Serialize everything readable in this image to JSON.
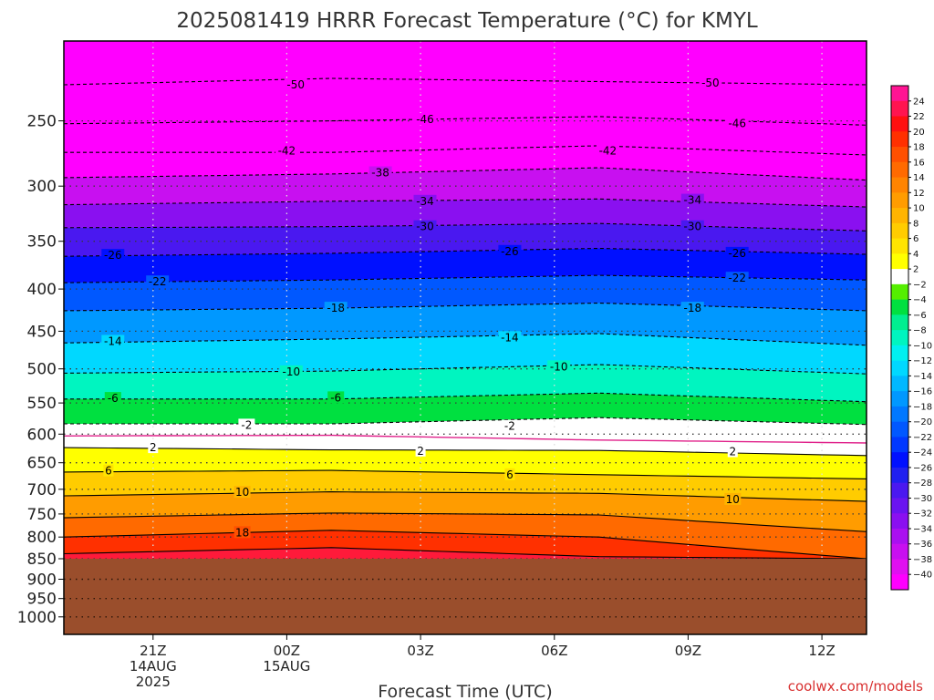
{
  "chart_data": {
    "type": "heatmap",
    "title": "2025081419 HRRR Forecast Temperature (°C) for KMYL",
    "xlabel": "Forecast Time (UTC)",
    "ylabel": "",
    "credit": "coolwx.com/models",
    "x_ticks": [
      {
        "label": "21Z",
        "sub": [
          "14AUG",
          "2025"
        ],
        "hours": 2
      },
      {
        "label": "00Z",
        "sub": [
          "15AUG"
        ],
        "hours": 5
      },
      {
        "label": "03Z",
        "sub": [],
        "hours": 8
      },
      {
        "label": "06Z",
        "sub": [],
        "hours": 11
      },
      {
        "label": "09Z",
        "sub": [],
        "hours": 14
      },
      {
        "label": "12Z",
        "sub": [],
        "hours": 17
      }
    ],
    "xlim_hours": [
      0,
      18
    ],
    "y_scale": "log",
    "y_ticks": [
      250,
      300,
      350,
      400,
      450,
      500,
      550,
      600,
      650,
      700,
      750,
      800,
      850,
      900,
      950,
      1000
    ],
    "ylim_hpa": [
      200,
      1050
    ],
    "surface_pressure_hpa": 850,
    "grid": true,
    "colorbar": {
      "levels": [
        24,
        22,
        20,
        18,
        16,
        14,
        12,
        10,
        8,
        6,
        4,
        2,
        -2,
        -4,
        -6,
        -8,
        -10,
        -12,
        -14,
        -16,
        -18,
        -20,
        -22,
        -24,
        -26,
        -28,
        -30,
        -32,
        -34,
        -36,
        -38,
        -40
      ],
      "colors": [
        "#ff1493",
        "#ff1450",
        "#ff1010",
        "#ff3000",
        "#ff5000",
        "#ff6a00",
        "#ff8400",
        "#ff9c00",
        "#ffb400",
        "#ffcc00",
        "#ffe400",
        "#ffff00",
        "#ffffff",
        "#55ee00",
        "#00e040",
        "#00ee90",
        "#00f5c0",
        "#00f0f0",
        "#00d8ff",
        "#00b8ff",
        "#0098ff",
        "#0078ff",
        "#0058ff",
        "#0038ff",
        "#0010ff",
        "#2020f0",
        "#4a18f0",
        "#6a14f0",
        "#8a10f0",
        "#aa10f0",
        "#c810f0",
        "#e010f0",
        "#ff00ff"
      ]
    },
    "contours": [
      {
        "value": -50,
        "pressures": [
          226,
          222,
          224,
          226
        ]
      },
      {
        "value": -46,
        "pressures": [
          252,
          250,
          247,
          253
        ]
      },
      {
        "value": -42,
        "pressures": [
          273,
          273,
          268,
          275
        ]
      },
      {
        "value": -38,
        "pressures": [
          293,
          290,
          285,
          295
        ]
      },
      {
        "value": -34,
        "pressures": [
          316,
          313,
          311,
          318
        ]
      },
      {
        "value": -30,
        "pressures": [
          337,
          336,
          333,
          340
        ]
      },
      {
        "value": -26,
        "pressures": [
          365,
          362,
          357,
          363
        ]
      },
      {
        "value": -22,
        "pressures": [
          393,
          390,
          385,
          390
        ]
      },
      {
        "value": -18,
        "pressures": [
          425,
          422,
          416,
          425
        ]
      },
      {
        "value": -14,
        "pressures": [
          465,
          460,
          453,
          468
        ]
      },
      {
        "value": -10,
        "pressures": [
          506,
          503,
          494,
          507
        ]
      },
      {
        "value": -6,
        "pressures": [
          544,
          544,
          535,
          548
        ]
      },
      {
        "value": -2,
        "pressures": [
          583,
          583,
          573,
          584
        ]
      },
      {
        "value": 0,
        "pressures": [
          603,
          602,
          610,
          615
        ]
      },
      {
        "value": 2,
        "pressures": [
          623,
          627,
          628,
          637
        ]
      },
      {
        "value": 6,
        "pressures": [
          667,
          664,
          672,
          680
        ]
      },
      {
        "value": 10,
        "pressures": [
          713,
          705,
          708,
          724
        ]
      },
      {
        "value": 14,
        "pressures": [
          758,
          748,
          752,
          788
        ]
      },
      {
        "value": 18,
        "pressures": [
          800,
          785,
          800,
          850
        ]
      },
      {
        "value": 22,
        "pressures": [
          838,
          824,
          845,
          850
        ]
      }
    ],
    "contour_labels": [
      {
        "text": "-50",
        "hours": 5.2,
        "p": 226
      },
      {
        "text": "-50",
        "hours": 14.5,
        "p": 225
      },
      {
        "text": "-46",
        "hours": 8.1,
        "p": 249
      },
      {
        "text": "-46",
        "hours": 15.1,
        "p": 252
      },
      {
        "text": "-42",
        "hours": 5.0,
        "p": 272
      },
      {
        "text": "-42",
        "hours": 12.2,
        "p": 272
      },
      {
        "text": "-38",
        "hours": 7.1,
        "p": 289
      },
      {
        "text": "-34",
        "hours": 8.1,
        "p": 313
      },
      {
        "text": "-34",
        "hours": 14.1,
        "p": 312
      },
      {
        "text": "-30",
        "hours": 8.1,
        "p": 336
      },
      {
        "text": "-30",
        "hours": 14.1,
        "p": 336
      },
      {
        "text": "-26",
        "hours": 1.1,
        "p": 364
      },
      {
        "text": "-26",
        "hours": 10.0,
        "p": 360
      },
      {
        "text": "-26",
        "hours": 15.1,
        "p": 362
      },
      {
        "text": "-22",
        "hours": 2.1,
        "p": 392
      },
      {
        "text": "-22",
        "hours": 15.1,
        "p": 388
      },
      {
        "text": "-18",
        "hours": 6.1,
        "p": 422
      },
      {
        "text": "-18",
        "hours": 14.1,
        "p": 422
      },
      {
        "text": "-14",
        "hours": 1.1,
        "p": 463
      },
      {
        "text": "-14",
        "hours": 10.0,
        "p": 458
      },
      {
        "text": "-10",
        "hours": 5.1,
        "p": 504
      },
      {
        "text": "-10",
        "hours": 11.1,
        "p": 497
      },
      {
        "text": "-6",
        "hours": 1.1,
        "p": 543
      },
      {
        "text": "-6",
        "hours": 6.1,
        "p": 542
      },
      {
        "text": "-2",
        "hours": 4.1,
        "p": 585
      },
      {
        "text": "-2",
        "hours": 10.0,
        "p": 587
      },
      {
        "text": "2",
        "hours": 2.0,
        "p": 623
      },
      {
        "text": "2",
        "hours": 8.0,
        "p": 629
      },
      {
        "text": "2",
        "hours": 15.0,
        "p": 630
      },
      {
        "text": "6",
        "hours": 1.0,
        "p": 665
      },
      {
        "text": "6",
        "hours": 10.0,
        "p": 672
      },
      {
        "text": "10",
        "hours": 4.0,
        "p": 706
      },
      {
        "text": "10",
        "hours": 15.0,
        "p": 720
      },
      {
        "text": "18",
        "hours": 4.0,
        "p": 790
      }
    ]
  }
}
